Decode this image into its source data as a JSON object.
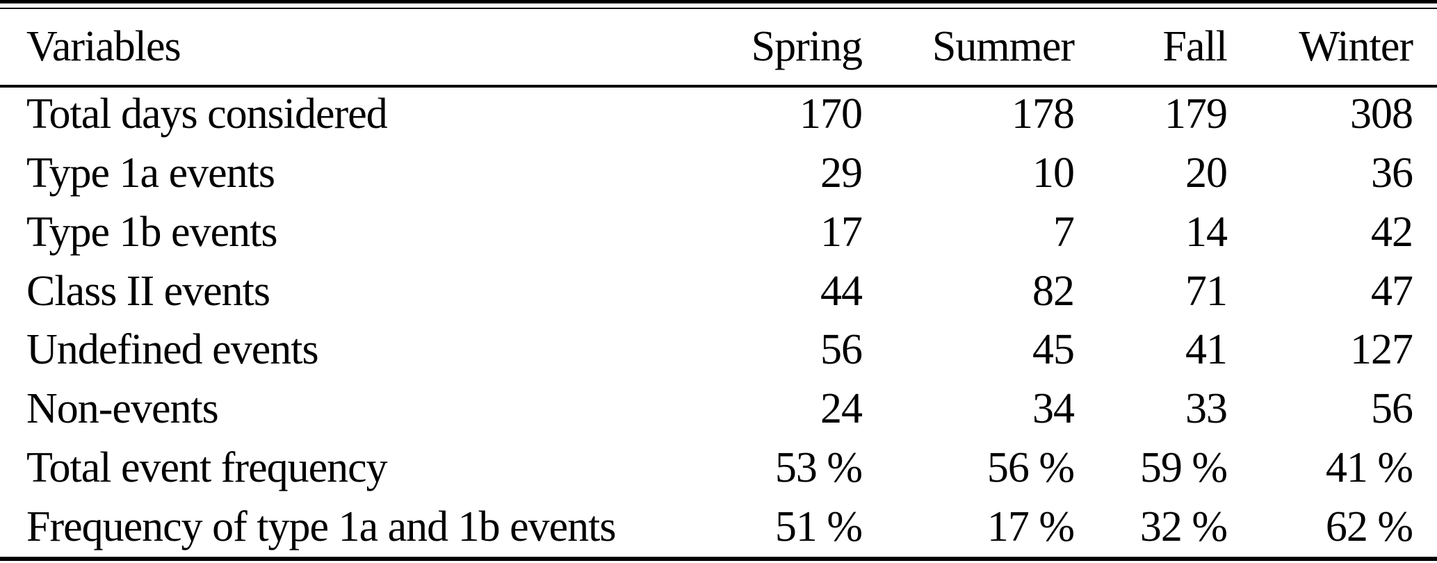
{
  "table": {
    "colors": {
      "background": "#ffffff",
      "text": "#000000",
      "rule": "#000000"
    },
    "header": {
      "label": "Variables",
      "columns": [
        "Spring",
        "Summer",
        "Fall",
        "Winter"
      ]
    },
    "rows": [
      {
        "label": "Total days considered",
        "values": [
          "170",
          "178",
          "179",
          "308"
        ]
      },
      {
        "label": "Type 1a events",
        "values": [
          "29",
          "10",
          "20",
          "36"
        ]
      },
      {
        "label": "Type 1b events",
        "values": [
          "17",
          "7",
          "14",
          "42"
        ]
      },
      {
        "label": "Class II events",
        "values": [
          "44",
          "82",
          "71",
          "47"
        ]
      },
      {
        "label": "Undefined events",
        "values": [
          "56",
          "45",
          "41",
          "127"
        ]
      },
      {
        "label": "Non-events",
        "values": [
          "24",
          "34",
          "33",
          "56"
        ]
      },
      {
        "label": "Total event frequency",
        "values": [
          "53 %",
          "56 %",
          "59 %",
          "41 %"
        ]
      },
      {
        "label": "Frequency of type 1a and 1b events",
        "values": [
          "51 %",
          "17 %",
          "32 %",
          "62 %"
        ]
      }
    ]
  }
}
